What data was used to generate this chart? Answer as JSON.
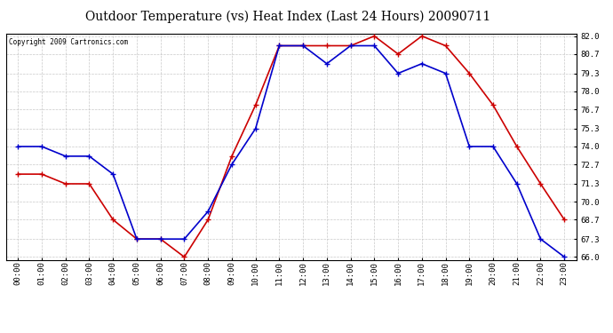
{
  "title": "Outdoor Temperature (vs) Heat Index (Last 24 Hours) 20090711",
  "copyright_text": "Copyright 2009 Cartronics.com",
  "hours": [
    "00:00",
    "01:00",
    "02:00",
    "03:00",
    "04:00",
    "05:00",
    "06:00",
    "07:00",
    "08:00",
    "09:00",
    "10:00",
    "11:00",
    "12:00",
    "13:00",
    "14:00",
    "15:00",
    "16:00",
    "17:00",
    "18:00",
    "19:00",
    "20:00",
    "21:00",
    "22:00",
    "23:00"
  ],
  "temp_red": [
    72.0,
    72.0,
    71.3,
    71.3,
    68.7,
    67.3,
    67.3,
    66.0,
    68.7,
    73.3,
    77.0,
    81.3,
    81.3,
    81.3,
    81.3,
    82.0,
    80.7,
    82.0,
    81.3,
    79.3,
    77.0,
    74.0,
    71.3,
    68.7
  ],
  "temp_blue": [
    74.0,
    74.0,
    73.3,
    73.3,
    72.0,
    67.3,
    67.3,
    67.3,
    69.3,
    72.7,
    75.3,
    81.3,
    81.3,
    80.0,
    81.3,
    81.3,
    79.3,
    80.0,
    79.3,
    74.0,
    74.0,
    71.3,
    67.3,
    66.0
  ],
  "ylim_min": 66.0,
  "ylim_max": 82.0,
  "yticks": [
    66.0,
    67.3,
    68.7,
    70.0,
    71.3,
    72.7,
    74.0,
    75.3,
    76.7,
    78.0,
    79.3,
    80.7,
    82.0
  ],
  "red_color": "#cc0000",
  "blue_color": "#0000cc",
  "background_color": "#ffffff",
  "grid_color": "#bbbbbb",
  "title_fontsize": 10,
  "tick_fontsize": 6.5
}
